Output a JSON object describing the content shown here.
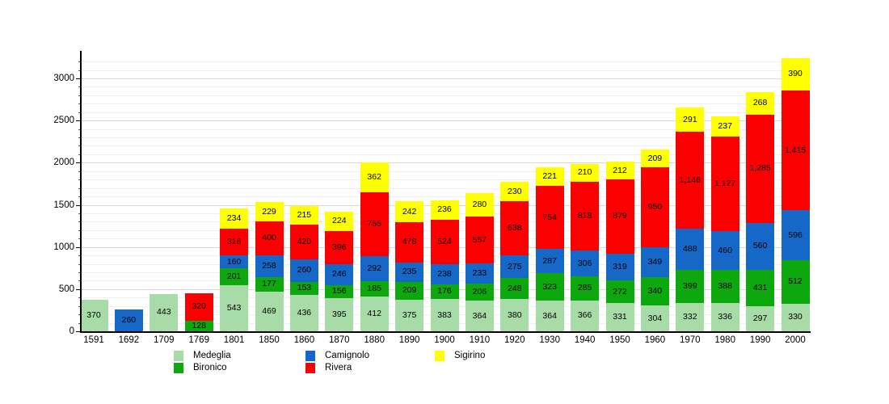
{
  "chart_data": {
    "type": "bar",
    "stacked": true,
    "title": "",
    "xlabel": "",
    "ylabel": "",
    "background": "#ffffff",
    "grid": true,
    "ylim": [
      0,
      3300
    ],
    "yticks": [
      0,
      500,
      1000,
      1500,
      2000,
      2500,
      3000
    ],
    "minor_grid_step": 100,
    "categories": [
      "1591",
      "1692",
      "1709",
      "1769",
      "1801",
      "1850",
      "1860",
      "1870",
      "1880",
      "1890",
      "1900",
      "1910",
      "1920",
      "1930",
      "1940",
      "1950",
      "1960",
      "1970",
      "1980",
      "1990",
      "2000"
    ],
    "series": [
      {
        "name": "Medeglia",
        "color": "#a7dba7",
        "values": [
          370,
          null,
          443,
          null,
          543,
          469,
          436,
          395,
          412,
          375,
          383,
          364,
          380,
          364,
          366,
          331,
          304,
          332,
          336,
          297,
          330
        ]
      },
      {
        "name": "Bironico",
        "color": "#0da80d",
        "values": [
          null,
          null,
          null,
          128,
          201,
          177,
          153,
          156,
          185,
          209,
          176,
          206,
          248,
          323,
          285,
          272,
          340,
          399,
          388,
          431,
          512
        ]
      },
      {
        "name": "Camignolo",
        "color": "#1568c8",
        "values": [
          null,
          260,
          null,
          null,
          160,
          258,
          260,
          246,
          292,
          235,
          238,
          233,
          275,
          287,
          306,
          319,
          349,
          488,
          460,
          560,
          596
        ]
      },
      {
        "name": "Rivera",
        "color": "#fb0000",
        "values": [
          null,
          null,
          null,
          320,
          316,
          400,
          420,
          396,
          755,
          478,
          524,
          557,
          638,
          754,
          818,
          879,
          950,
          1146,
          1127,
          1285,
          1415
        ]
      },
      {
        "name": "Sigirino",
        "color": "#ffff00",
        "values": [
          null,
          null,
          null,
          null,
          234,
          229,
          215,
          224,
          362,
          242,
          236,
          280,
          230,
          221,
          210,
          212,
          209,
          291,
          237,
          268,
          390
        ]
      }
    ],
    "legend": {
      "position": "bottom",
      "columns": [
        [
          "Medeglia",
          "Bironico"
        ],
        [
          "Camignolo",
          "Rivera"
        ],
        [
          "Sigirino"
        ]
      ]
    }
  }
}
